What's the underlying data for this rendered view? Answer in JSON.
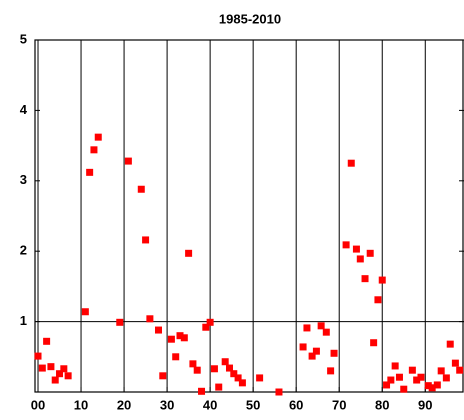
{
  "chart_data": {
    "type": "scatter",
    "title": "1985-2010",
    "color": "#ff0000",
    "xlim": [
      -0.7,
      99
    ],
    "ylim": [
      0,
      5
    ],
    "xticks": [
      {
        "value": 0,
        "label": "00"
      },
      10,
      20,
      30,
      40,
      50,
      60,
      70,
      80,
      90
    ],
    "yticks": [
      1,
      2,
      3,
      4,
      5
    ],
    "grid": true,
    "reference_line": 1,
    "x": [
      0,
      1,
      2,
      3,
      4,
      5,
      6,
      7,
      11,
      12,
      13,
      14,
      19,
      21,
      24,
      25,
      26,
      28,
      29,
      31,
      32,
      33,
      34,
      35,
      36,
      37,
      38,
      39,
      40,
      41,
      42,
      43.5,
      44.5,
      45.5,
      46.5,
      47.5,
      51.5,
      56,
      61.6,
      62.5,
      63.7,
      64.7,
      65.8,
      67,
      68,
      68.8,
      71.6,
      72.8,
      74,
      74.9,
      76,
      77.2,
      78,
      79,
      80,
      81,
      82,
      83,
      84,
      85,
      87,
      88,
      89,
      90.7,
      91.6,
      92.8,
      93.7,
      94.9,
      95.8,
      97,
      98
    ],
    "values": [
      0.51,
      0.34,
      0.72,
      0.36,
      0.17,
      0.26,
      0.33,
      0.23,
      1.14,
      3.12,
      3.44,
      3.62,
      0.99,
      3.28,
      2.88,
      2.16,
      1.04,
      0.88,
      0.23,
      0.75,
      0.5,
      0.8,
      0.77,
      1.97,
      0.4,
      0.31,
      0.01,
      0.92,
      0.99,
      0.33,
      0.07,
      0.43,
      0.34,
      0.26,
      0.2,
      0.13,
      0.2,
      0,
      0.64,
      0.91,
      0.51,
      0.58,
      0.94,
      0.85,
      0.3,
      0.55,
      2.09,
      3.25,
      2.03,
      1.89,
      1.61,
      1.97,
      0.7,
      1.31,
      1.59,
      0.1,
      0.17,
      0.37,
      0.21,
      0.04,
      0.31,
      0.17,
      0.21,
      0.09,
      0.06,
      0.1,
      0.3,
      0.2,
      0.68,
      0.41,
      0.31
    ]
  }
}
